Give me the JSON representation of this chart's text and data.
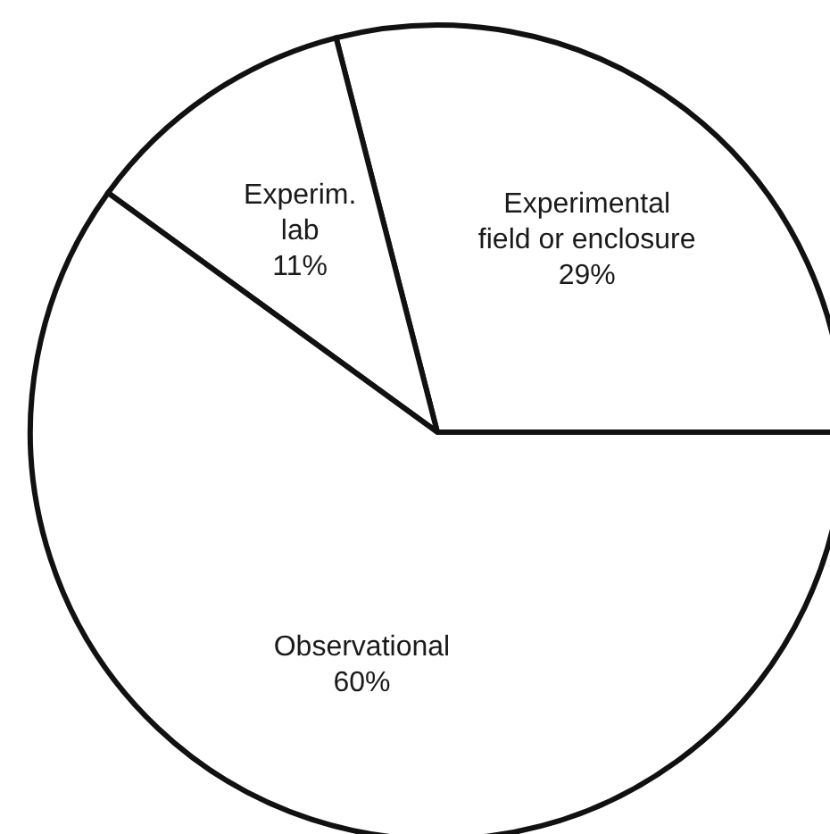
{
  "chart_data": {
    "type": "pie",
    "categories": [
      "Experimental\nfield or enclosure",
      "Experim.\nlab",
      "Observational"
    ],
    "values": [
      29,
      11,
      60
    ],
    "value_labels": [
      "29%",
      "11%",
      "60%"
    ],
    "colors": [
      "#ffffff",
      "#ffffff",
      "#ffffff"
    ]
  }
}
